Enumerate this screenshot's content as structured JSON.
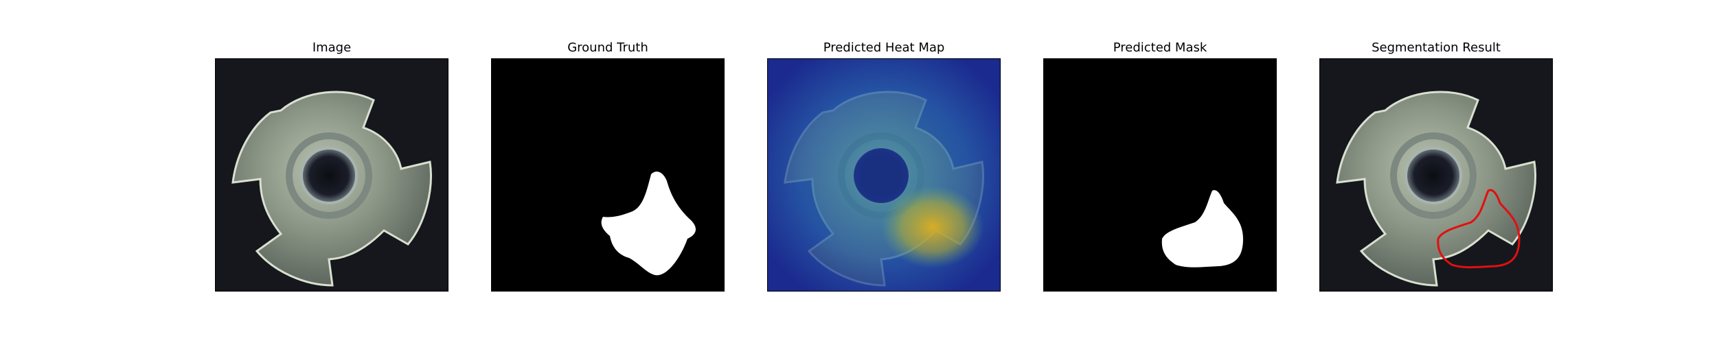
{
  "figure": {
    "panels": [
      {
        "title": "Image",
        "content": "photo of a four-lobed metal nut on dark background"
      },
      {
        "title": "Ground Truth",
        "content": "binary mask, white defect region on black"
      },
      {
        "title": "Predicted Heat Map",
        "content": "anomaly heat map overlay, jet colormap"
      },
      {
        "title": "Predicted Mask",
        "content": "binary mask, white predicted region on black"
      },
      {
        "title": "Segmentation Result",
        "content": "photo with red contour of predicted region"
      }
    ],
    "colors": {
      "background_dark": "#16171c",
      "mask_white": "#ffffff",
      "mask_black": "#000000",
      "contour_red": "#e01010",
      "heat_low": "#1b2a8f",
      "heat_high": "#e0b020"
    }
  }
}
